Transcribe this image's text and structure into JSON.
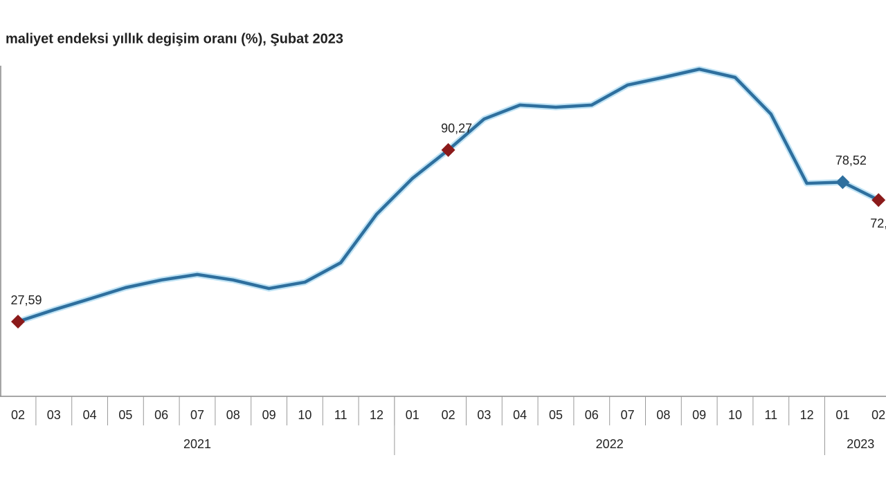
{
  "chart_data": {
    "type": "line",
    "title": "maliyet endeksi yıllık degişim oranı (%), Şubat 2023",
    "groups": [
      {
        "label": "2021",
        "categories": [
          "02",
          "03",
          "04",
          "05",
          "06",
          "07",
          "08",
          "09",
          "10",
          "11",
          "12"
        ]
      },
      {
        "label": "2022",
        "categories": [
          "01",
          "02",
          "03",
          "04",
          "05",
          "06",
          "07",
          "08",
          "09",
          "10",
          "11",
          "12"
        ]
      },
      {
        "label": "2023",
        "categories": [
          "01",
          "02"
        ]
      }
    ],
    "color": "#2e6f9e",
    "values": [
      27.59,
      31.9,
      35.9,
      40.0,
      42.8,
      44.8,
      42.8,
      39.7,
      42.0,
      49.1,
      66.8,
      79.9,
      90.27,
      101.6,
      106.7,
      105.9,
      106.7,
      114.0,
      116.8,
      119.8,
      116.8,
      103.4,
      78.1,
      78.52,
      72
    ],
    "value_labels": [
      "27,59",
      null,
      null,
      null,
      null,
      null,
      null,
      null,
      null,
      null,
      null,
      null,
      "90,27",
      null,
      null,
      null,
      null,
      null,
      null,
      null,
      null,
      null,
      null,
      "78,52",
      "72,"
    ],
    "marker_colors": [
      "#8b1a1a",
      null,
      null,
      null,
      null,
      null,
      null,
      null,
      null,
      null,
      null,
      null,
      "#8b1a1a",
      null,
      null,
      null,
      null,
      null,
      null,
      null,
      null,
      null,
      null,
      "#2e6f9e",
      "#8b1a1a"
    ]
  }
}
